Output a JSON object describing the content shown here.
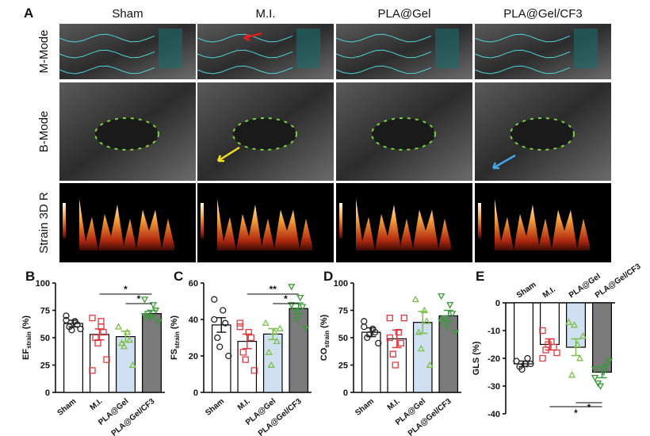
{
  "panel_a": {
    "label": "A",
    "columns": [
      "Sham",
      "M.I.",
      "PLA@Gel",
      "PLA@Gel/CF3"
    ],
    "rows": [
      "M-Mode",
      "B-Mode",
      "Strain 3D R"
    ]
  },
  "chart_data": [
    {
      "type": "bar",
      "panel": "B",
      "y_label": {
        "main": "EF",
        "sub": "strain",
        "unit": "(%)"
      },
      "categories": [
        "Sham",
        "M.I.",
        "PLA@Gel",
        "PLA@Gel/CF3"
      ],
      "values": [
        63,
        53,
        51,
        72
      ],
      "errors": [
        3,
        5,
        5,
        3
      ],
      "points": [
        [
          70,
          65,
          62,
          60,
          57,
          58,
          66
        ],
        [
          68,
          60,
          55,
          50,
          45,
          30,
          20,
          65
        ],
        [
          60,
          55,
          48,
          45,
          42,
          25
        ],
        [
          85,
          80,
          75,
          72,
          68,
          65,
          70
        ]
      ],
      "ylim": [
        0,
        100
      ],
      "yticks": [
        0,
        25,
        50,
        75,
        100
      ],
      "bar_colors": [
        "#ffffff",
        "#ffffff",
        "#cfe0f3",
        "#7a7a7a"
      ],
      "marker_colors": [
        "#222222",
        "#e0393e",
        "#7cc04a",
        "#3a9a3a"
      ],
      "markers": [
        "circle",
        "square",
        "triangle",
        "triangle-down"
      ],
      "significance": [
        {
          "label": "*",
          "groups": [
            "M.I.",
            "PLA@Gel/CF3"
          ]
        },
        {
          "label": "*",
          "groups": [
            "PLA@Gel",
            "PLA@Gel/CF3"
          ]
        }
      ]
    },
    {
      "type": "bar",
      "panel": "C",
      "y_label": {
        "main": "FS",
        "sub": "strain",
        "unit": "(%)"
      },
      "categories": [
        "Sham",
        "M.I.",
        "PLA@Gel",
        "PLA@Gel/CF3"
      ],
      "values": [
        37,
        28,
        32,
        46
      ],
      "errors": [
        4,
        4,
        3,
        3
      ],
      "points": [
        [
          51,
          45,
          38,
          30,
          25,
          20,
          40
        ],
        [
          36,
          33,
          30,
          22,
          18,
          12,
          38
        ],
        [
          38,
          33,
          28,
          22,
          15,
          35
        ],
        [
          58,
          52,
          47,
          45,
          40,
          35,
          48
        ]
      ],
      "ylim": [
        0,
        60
      ],
      "yticks": [
        0,
        20,
        40,
        60
      ],
      "bar_colors": [
        "#ffffff",
        "#ffffff",
        "#cfe0f3",
        "#7a7a7a"
      ],
      "marker_colors": [
        "#222222",
        "#e0393e",
        "#7cc04a",
        "#3a9a3a"
      ],
      "markers": [
        "circle",
        "square",
        "triangle",
        "triangle-down"
      ],
      "significance": [
        {
          "label": "**",
          "groups": [
            "M.I.",
            "PLA@Gel/CF3"
          ]
        },
        {
          "label": "*",
          "groups": [
            "PLA@Gel",
            "PLA@Gel/CF3"
          ]
        }
      ]
    },
    {
      "type": "bar",
      "panel": "D",
      "y_label": {
        "main": "CO",
        "sub": "strain",
        "unit": "(%)"
      },
      "categories": [
        "Sham",
        "M.I.",
        "PLA@Gel",
        "PLA@Gel/CF3"
      ],
      "values": [
        55,
        49,
        64,
        70
      ],
      "errors": [
        4,
        8,
        10,
        5
      ],
      "points": [
        [
          65,
          58,
          55,
          50,
          53,
          45,
          60
        ],
        [
          68,
          55,
          45,
          35,
          25,
          68,
          50
        ],
        [
          85,
          75,
          65,
          55,
          40,
          25
        ],
        [
          88,
          80,
          72,
          68,
          60,
          55,
          65
        ]
      ],
      "ylim": [
        0,
        100
      ],
      "yticks": [
        0,
        25,
        50,
        75,
        100
      ],
      "bar_colors": [
        "#ffffff",
        "#ffffff",
        "#cfe0f3",
        "#7a7a7a"
      ],
      "marker_colors": [
        "#222222",
        "#e0393e",
        "#7cc04a",
        "#3a9a3a"
      ],
      "markers": [
        "circle",
        "square",
        "triangle",
        "triangle-down"
      ],
      "significance": []
    },
    {
      "type": "bar",
      "panel": "E",
      "y_label": {
        "main": "GLS",
        "unit": "(%)"
      },
      "categories": [
        "Sham",
        "M.I.",
        "PLA@Gel",
        "PLA@Gel/CF3"
      ],
      "values": [
        -22,
        -15,
        -16,
        -25
      ],
      "errors": [
        1,
        2,
        3,
        2
      ],
      "points": [
        [
          -21,
          -22,
          -20,
          -23,
          -24,
          -22
        ],
        [
          -10,
          -14,
          -16,
          -17,
          -15,
          -18,
          -20
        ],
        [
          -7,
          -15,
          -20,
          -26,
          -8,
          -12
        ],
        [
          -24,
          -25,
          -23,
          -29,
          -30,
          -21,
          -27
        ]
      ],
      "ylim": [
        -40,
        0
      ],
      "yticks": [
        0,
        -10,
        -20,
        -30,
        -40
      ],
      "bar_colors": [
        "#ffffff",
        "#ffffff",
        "#cfe0f3",
        "#7a7a7a"
      ],
      "marker_colors": [
        "#222222",
        "#e0393e",
        "#7cc04a",
        "#3a9a3a"
      ],
      "markers": [
        "circle",
        "square",
        "triangle",
        "triangle-down"
      ],
      "significance": [
        {
          "label": "*",
          "groups": [
            "PLA@Gel",
            "PLA@Gel/CF3"
          ]
        },
        {
          "label": "*",
          "groups": [
            "M.I.",
            "PLA@Gel/CF3"
          ]
        }
      ]
    }
  ]
}
